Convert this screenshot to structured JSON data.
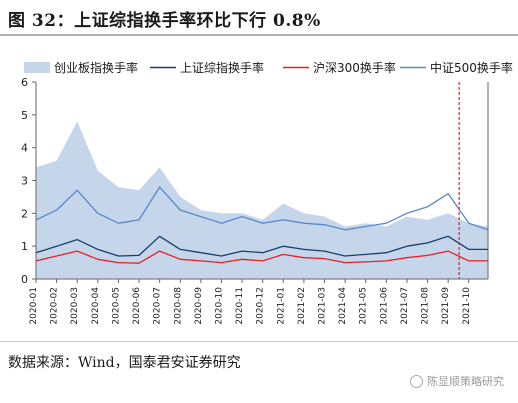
{
  "header": {
    "title": "图 32：上证综指换手率环比下行 0.8%"
  },
  "footer": {
    "source": "数据来源：Wind，国泰君安证券研究",
    "watermark": "陈显顺策略研究"
  },
  "colors": {
    "area": "#c6d6ea",
    "shanghai": "#163f6e",
    "hs300": "#ee1c24",
    "zz500": "#5a87cc",
    "marker": "#d9242a",
    "axis": "#666666"
  },
  "chart_data": {
    "type": "line",
    "title": "",
    "xlabel": "",
    "ylabel": "",
    "ylim": [
      0,
      6
    ],
    "yticks": [
      0,
      1,
      2,
      3,
      4,
      5,
      6
    ],
    "grid": false,
    "legend_position": "top",
    "x_tick_labels": [
      "2020-01",
      "2020-02",
      "2020-03",
      "2020-04",
      "2020-05",
      "2020-06",
      "2020-07",
      "2020-08",
      "2020-09",
      "2020-10",
      "2020-11",
      "2020-12",
      "2021-01",
      "2021-02",
      "2021-03",
      "2021-04",
      "2021-05",
      "2021-06",
      "2021-07",
      "2021-08",
      "2021-09",
      "2021-10"
    ],
    "x": [
      "2020-01",
      "2020-02",
      "2020-03",
      "2020-04",
      "2020-05",
      "2020-06",
      "2020-07",
      "2020-08",
      "2020-09",
      "2020-10",
      "2020-11",
      "2020-12",
      "2021-01",
      "2021-02",
      "2021-03",
      "2021-04",
      "2021-05",
      "2021-06",
      "2021-07",
      "2021-08",
      "2021-09",
      "2021-10",
      "2021-10-29"
    ],
    "series": [
      {
        "name": "创业板指换手率",
        "kind": "area",
        "values": [
          3.4,
          3.6,
          4.8,
          3.3,
          2.8,
          2.7,
          3.4,
          2.5,
          2.1,
          2.0,
          2.0,
          1.8,
          2.3,
          2.0,
          1.9,
          1.6,
          1.7,
          1.6,
          1.9,
          1.8,
          2.0,
          1.7,
          1.6
        ]
      },
      {
        "name": "上证综指换手率",
        "kind": "line",
        "values": [
          0.8,
          1.0,
          1.2,
          0.9,
          0.7,
          0.72,
          1.3,
          0.9,
          0.8,
          0.7,
          0.85,
          0.8,
          1.0,
          0.9,
          0.85,
          0.7,
          0.75,
          0.8,
          1.0,
          1.1,
          1.3,
          0.9,
          0.9
        ]
      },
      {
        "name": "沪深300换手率",
        "kind": "line",
        "values": [
          0.55,
          0.7,
          0.85,
          0.6,
          0.5,
          0.48,
          0.85,
          0.6,
          0.55,
          0.5,
          0.6,
          0.55,
          0.75,
          0.65,
          0.62,
          0.5,
          0.52,
          0.55,
          0.65,
          0.72,
          0.85,
          0.55,
          0.55
        ]
      },
      {
        "name": "中证500换手率",
        "kind": "line",
        "values": [
          1.8,
          2.1,
          2.7,
          2.0,
          1.7,
          1.8,
          2.8,
          2.1,
          1.9,
          1.7,
          1.9,
          1.7,
          1.8,
          1.7,
          1.65,
          1.5,
          1.6,
          1.7,
          2.0,
          2.2,
          2.6,
          1.7,
          1.5
        ]
      }
    ],
    "markers": [
      {
        "type": "vertical-dashed-line",
        "x": "2021-09-17"
      }
    ]
  }
}
